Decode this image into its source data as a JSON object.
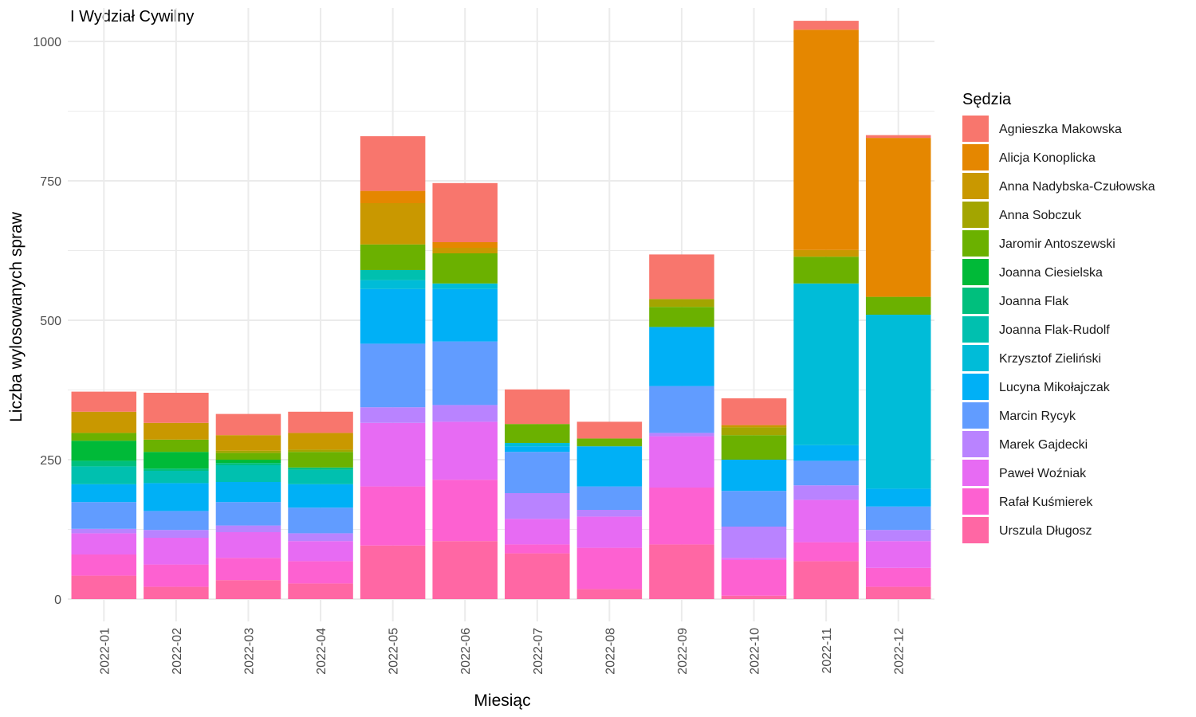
{
  "chart_data": {
    "type": "bar",
    "stacked": true,
    "title": "I Wydział Cywilny",
    "xlabel": "Miesiąc",
    "ylabel": "Liczba wylosowanych spraw",
    "ylim": [
      -40,
      1060
    ],
    "yticks": [
      0,
      250,
      500,
      750,
      1000
    ],
    "grid": true,
    "legend_title": "Sędzia",
    "legend_position": "right",
    "categories": [
      "2022-01",
      "2022-02",
      "2022-03",
      "2022-04",
      "2022-05",
      "2022-06",
      "2022-07",
      "2022-08",
      "2022-09",
      "2022-10",
      "2022-11",
      "2022-12"
    ],
    "series": [
      {
        "name": "Agnieszka Makowska",
        "color": "#F8766D",
        "values": [
          36,
          54,
          38,
          38,
          98,
          106,
          62,
          30,
          80,
          48,
          16,
          5
        ]
      },
      {
        "name": "Alicja Konoplicka",
        "color": "#E58700",
        "values": [
          0,
          0,
          0,
          0,
          22,
          10,
          0,
          0,
          0,
          0,
          395,
          285
        ]
      },
      {
        "name": "Anna Nadybska-Czułowska",
        "color": "#C99800",
        "values": [
          38,
          30,
          28,
          30,
          74,
          10,
          0,
          0,
          0,
          4,
          12,
          0
        ]
      },
      {
        "name": "Anna Sobczuk",
        "color": "#A3A500",
        "values": [
          0,
          0,
          4,
          4,
          0,
          0,
          0,
          0,
          14,
          14,
          0,
          0
        ]
      },
      {
        "name": "Jaromir Antoszewski",
        "color": "#6BB100",
        "values": [
          14,
          22,
          12,
          28,
          46,
          54,
          34,
          14,
          36,
          44,
          48,
          32
        ]
      },
      {
        "name": "Joanna Ciesielska",
        "color": "#00BA38",
        "values": [
          36,
          30,
          6,
          0,
          0,
          0,
          0,
          0,
          0,
          0,
          0,
          0
        ]
      },
      {
        "name": "Joanna Flak",
        "color": "#00BF7D",
        "values": [
          10,
          4,
          4,
          4,
          0,
          0,
          0,
          0,
          0,
          0,
          0,
          0
        ]
      },
      {
        "name": "Joanna Flak-Rudolf",
        "color": "#00C0AF",
        "values": [
          32,
          22,
          30,
          26,
          18,
          0,
          0,
          0,
          0,
          0,
          0,
          0
        ]
      },
      {
        "name": "Krzysztof Zieliński",
        "color": "#00BCD8",
        "values": [
          0,
          0,
          0,
          0,
          16,
          10,
          6,
          0,
          0,
          0,
          290,
          312
        ]
      },
      {
        "name": "Lucyna Mikołajczak",
        "color": "#00B0F6",
        "values": [
          32,
          50,
          36,
          42,
          98,
          94,
          10,
          72,
          106,
          56,
          28,
          32
        ]
      },
      {
        "name": "Marcin Rycyk",
        "color": "#619CFF",
        "values": [
          48,
          34,
          42,
          46,
          114,
          114,
          74,
          42,
          84,
          64,
          44,
          42
        ]
      },
      {
        "name": "Marek Gajdecki",
        "color": "#B983FF",
        "values": [
          8,
          14,
          12,
          14,
          28,
          30,
          46,
          12,
          6,
          56,
          26,
          20
        ]
      },
      {
        "name": "Paweł Woźniak",
        "color": "#E76BF3",
        "values": [
          38,
          48,
          46,
          36,
          114,
          104,
          46,
          56,
          92,
          4,
          76,
          48
        ]
      },
      {
        "name": "Rafał Kuśmierek",
        "color": "#FD61D1",
        "values": [
          38,
          40,
          40,
          40,
          106,
          110,
          16,
          74,
          102,
          64,
          34,
          34
        ]
      },
      {
        "name": "Urszula Długosz",
        "color": "#FF67A4",
        "values": [
          42,
          22,
          34,
          28,
          96,
          104,
          82,
          18,
          98,
          6,
          68,
          22
        ]
      }
    ]
  }
}
